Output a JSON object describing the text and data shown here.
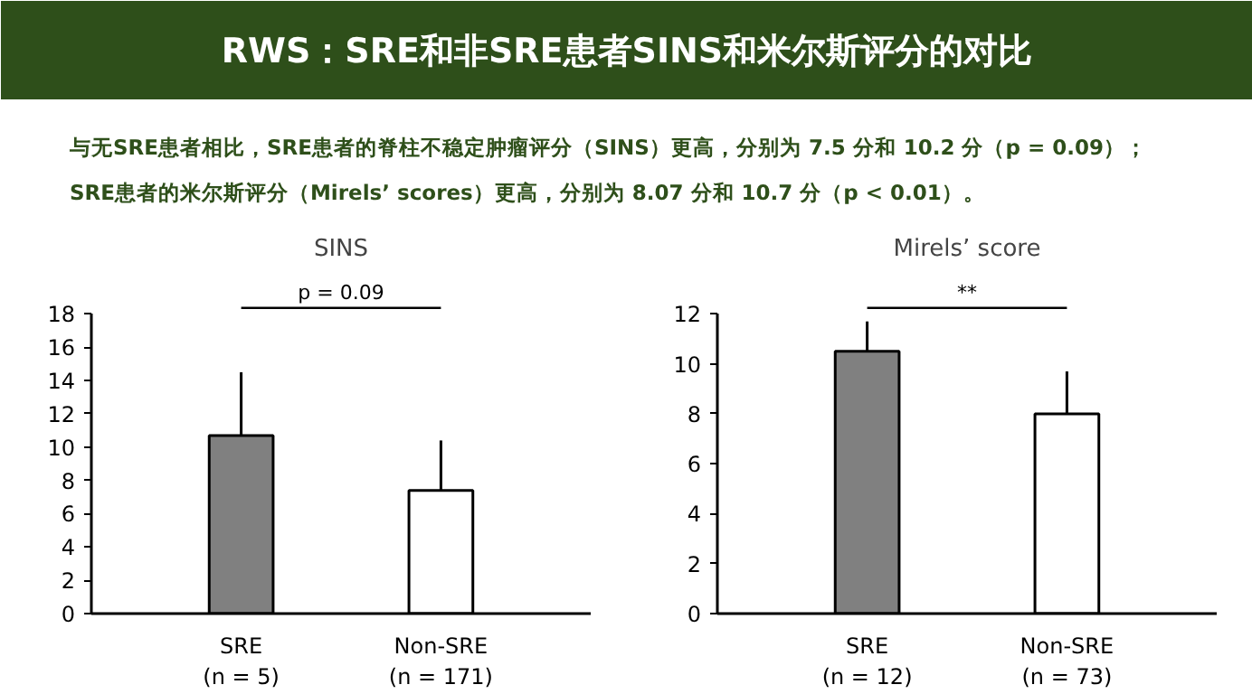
{
  "chart_data": [
    {
      "type": "other",
      "title": "RWS：SRE和非SRE患者SINS和米尔斯评分的对比",
      "color": "#2e4f1a",
      "annotations": [
        "与无SRE患者相比，SRE患者的脊柱不稳定肿瘤评分（SINS）更高，分别为 7.5 分和 10.2 分（p = 0.09）；",
        "SRE患者的米尔斯评分（Mirels’  scores）更高，分别为 8.07 分和 10.7 分（p < 0.01）。"
      ]
    },
    {
      "type": "bar",
      "title": "SINS",
      "categories": [
        "SRE\n(n = 5)",
        "Non-SRE\n(n = 171)"
      ],
      "values": [
        10.7,
        7.4
      ],
      "colors": [
        "#808080",
        "#ffffff"
      ],
      "errors": [
        [
          10.7,
          14.5
        ],
        [
          7.4,
          10.4
        ]
      ],
      "ylim": [
        0,
        18
      ],
      "yticks": [
        0,
        2,
        4,
        6,
        8,
        10,
        12,
        14,
        16,
        18
      ],
      "grid": false,
      "annotations": [
        "p = 0.09"
      ]
    },
    {
      "type": "bar",
      "title": "Mirels’ score",
      "categories": [
        "SRE\n(n = 12)",
        "Non-SRE\n(n = 73)"
      ],
      "values": [
        10.5,
        8.0
      ],
      "colors": [
        "#808080",
        "#ffffff"
      ],
      "errors": [
        [
          10.5,
          11.7
        ],
        [
          8.0,
          9.7
        ]
      ],
      "ylim": [
        0,
        12
      ],
      "yticks": [
        0,
        2,
        4,
        6,
        8,
        10,
        12
      ],
      "grid": false,
      "annotations": [
        "**"
      ]
    }
  ]
}
